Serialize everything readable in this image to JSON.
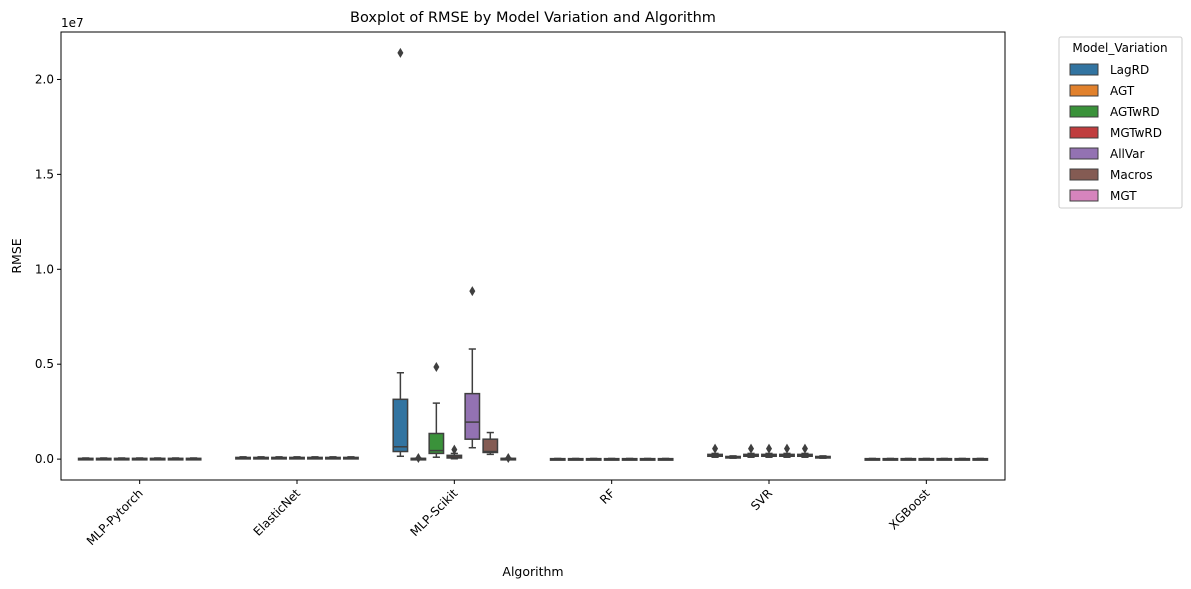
{
  "chart_data": {
    "type": "box",
    "title": "Boxplot of RMSE by Model Variation and Algorithm",
    "xlabel": "Algorithm",
    "ylabel": "RMSE",
    "y_offset_text": "1e7",
    "y_scale_factor": 10000000,
    "ylim": [
      -1100000,
      22500000
    ],
    "yticks": [
      0,
      5000000,
      10000000,
      15000000,
      20000000
    ],
    "ytick_labels": [
      "0.0",
      "0.5",
      "1.0",
      "1.5",
      "2.0"
    ],
    "categories": [
      "MLP-Pytorch",
      "ElasticNet",
      "MLP-Scikit",
      "RF",
      "SVR",
      "XGBoost"
    ],
    "series_colors": [
      "#3274a1",
      "#e1812c",
      "#3a923a",
      "#c03d3e",
      "#9372b2",
      "#845b53",
      "#d684bd"
    ],
    "series": [
      {
        "name": "LagRD",
        "boxes": [
          {
            "category": "MLP-Pytorch",
            "stats": [
              5000,
              15000,
              25000,
              40000,
              60000
            ],
            "outliers": []
          },
          {
            "category": "ElasticNet",
            "stats": [
              20000,
              40000,
              60000,
              90000,
              120000
            ],
            "outliers": []
          },
          {
            "category": "MLP-Scikit",
            "stats": [
              150000,
              400000,
              650000,
              3150000,
              4550000
            ],
            "outliers": [
              21400000
            ]
          },
          {
            "category": "RF",
            "stats": [
              5000,
              10000,
              15000,
              25000,
              35000
            ],
            "outliers": []
          },
          {
            "category": "SVR",
            "stats": [
              100000,
              150000,
              200000,
              250000,
              300000
            ],
            "outliers": [
              550000
            ]
          },
          {
            "category": "XGBoost",
            "stats": [
              5000,
              10000,
              15000,
              25000,
              35000
            ],
            "outliers": []
          }
        ]
      },
      {
        "name": "AGT",
        "boxes": [
          {
            "category": "MLP-Pytorch",
            "stats": [
              5000,
              15000,
              25000,
              40000,
              60000
            ],
            "outliers": []
          },
          {
            "category": "ElasticNet",
            "stats": [
              20000,
              40000,
              60000,
              90000,
              120000
            ],
            "outliers": []
          },
          {
            "category": "MLP-Scikit",
            "stats": [
              10000,
              20000,
              30000,
              40000,
              50000
            ],
            "outliers": [
              60000
            ]
          },
          {
            "category": "RF",
            "stats": [
              5000,
              10000,
              15000,
              25000,
              35000
            ],
            "outliers": []
          },
          {
            "category": "SVR",
            "stats": [
              50000,
              80000,
              110000,
              140000,
              170000
            ],
            "outliers": []
          },
          {
            "category": "XGBoost",
            "stats": [
              5000,
              10000,
              15000,
              25000,
              35000
            ],
            "outliers": []
          }
        ]
      },
      {
        "name": "AGTwRD",
        "boxes": [
          {
            "category": "MLP-Pytorch",
            "stats": [
              5000,
              15000,
              25000,
              40000,
              60000
            ],
            "outliers": []
          },
          {
            "category": "ElasticNet",
            "stats": [
              20000,
              40000,
              60000,
              90000,
              120000
            ],
            "outliers": []
          },
          {
            "category": "MLP-Scikit",
            "stats": [
              100000,
              300000,
              450000,
              1350000,
              2950000
            ],
            "outliers": [
              4850000
            ]
          },
          {
            "category": "RF",
            "stats": [
              5000,
              10000,
              15000,
              25000,
              35000
            ],
            "outliers": []
          },
          {
            "category": "SVR",
            "stats": [
              100000,
              150000,
              200000,
              250000,
              300000
            ],
            "outliers": [
              550000
            ]
          },
          {
            "category": "XGBoost",
            "stats": [
              5000,
              10000,
              15000,
              25000,
              35000
            ],
            "outliers": []
          }
        ]
      },
      {
        "name": "MGTwRD",
        "boxes": [
          {
            "category": "MLP-Pytorch",
            "stats": [
              5000,
              15000,
              25000,
              40000,
              60000
            ],
            "outliers": []
          },
          {
            "category": "ElasticNet",
            "stats": [
              20000,
              40000,
              60000,
              90000,
              120000
            ],
            "outliers": []
          },
          {
            "category": "MLP-Scikit",
            "stats": [
              20000,
              60000,
              120000,
              200000,
              300000
            ],
            "outliers": [
              500000
            ]
          },
          {
            "category": "RF",
            "stats": [
              5000,
              10000,
              15000,
              25000,
              35000
            ],
            "outliers": []
          },
          {
            "category": "SVR",
            "stats": [
              100000,
              150000,
              200000,
              250000,
              300000
            ],
            "outliers": [
              550000
            ]
          },
          {
            "category": "XGBoost",
            "stats": [
              5000,
              10000,
              15000,
              25000,
              35000
            ],
            "outliers": []
          }
        ]
      },
      {
        "name": "AllVar",
        "boxes": [
          {
            "category": "MLP-Pytorch",
            "stats": [
              5000,
              15000,
              25000,
              40000,
              60000
            ],
            "outliers": []
          },
          {
            "category": "ElasticNet",
            "stats": [
              20000,
              40000,
              60000,
              90000,
              120000
            ],
            "outliers": []
          },
          {
            "category": "MLP-Scikit",
            "stats": [
              600000,
              1050000,
              1950000,
              3450000,
              5800000
            ],
            "outliers": [
              8850000
            ]
          },
          {
            "category": "RF",
            "stats": [
              5000,
              10000,
              15000,
              25000,
              35000
            ],
            "outliers": []
          },
          {
            "category": "SVR",
            "stats": [
              100000,
              150000,
              200000,
              250000,
              300000
            ],
            "outliers": [
              550000
            ]
          },
          {
            "category": "XGBoost",
            "stats": [
              5000,
              10000,
              15000,
              25000,
              35000
            ],
            "outliers": []
          }
        ]
      },
      {
        "name": "Macros",
        "boxes": [
          {
            "category": "MLP-Pytorch",
            "stats": [
              5000,
              15000,
              25000,
              40000,
              60000
            ],
            "outliers": []
          },
          {
            "category": "ElasticNet",
            "stats": [
              20000,
              40000,
              60000,
              90000,
              120000
            ],
            "outliers": []
          },
          {
            "category": "MLP-Scikit",
            "stats": [
              250000,
              350000,
              400000,
              1050000,
              1400000
            ],
            "outliers": []
          },
          {
            "category": "RF",
            "stats": [
              5000,
              10000,
              15000,
              25000,
              35000
            ],
            "outliers": []
          },
          {
            "category": "SVR",
            "stats": [
              100000,
              150000,
              200000,
              250000,
              300000
            ],
            "outliers": [
              550000
            ]
          },
          {
            "category": "XGBoost",
            "stats": [
              5000,
              10000,
              15000,
              25000,
              35000
            ],
            "outliers": []
          }
        ]
      },
      {
        "name": "MGT",
        "boxes": [
          {
            "category": "MLP-Pytorch",
            "stats": [
              5000,
              15000,
              25000,
              40000,
              60000
            ],
            "outliers": []
          },
          {
            "category": "ElasticNet",
            "stats": [
              20000,
              40000,
              60000,
              90000,
              120000
            ],
            "outliers": []
          },
          {
            "category": "MLP-Scikit",
            "stats": [
              10000,
              20000,
              30000,
              40000,
              50000
            ],
            "outliers": [
              60000
            ]
          },
          {
            "category": "RF",
            "stats": [
              5000,
              10000,
              15000,
              25000,
              35000
            ],
            "outliers": []
          },
          {
            "category": "SVR",
            "stats": [
              50000,
              80000,
              110000,
              140000,
              170000
            ],
            "outliers": []
          },
          {
            "category": "XGBoost",
            "stats": [
              5000,
              10000,
              15000,
              25000,
              35000
            ],
            "outliers": []
          }
        ]
      }
    ],
    "legend": {
      "title": "Model_Variation",
      "placement": "outside-top-right"
    },
    "grid": false
  }
}
